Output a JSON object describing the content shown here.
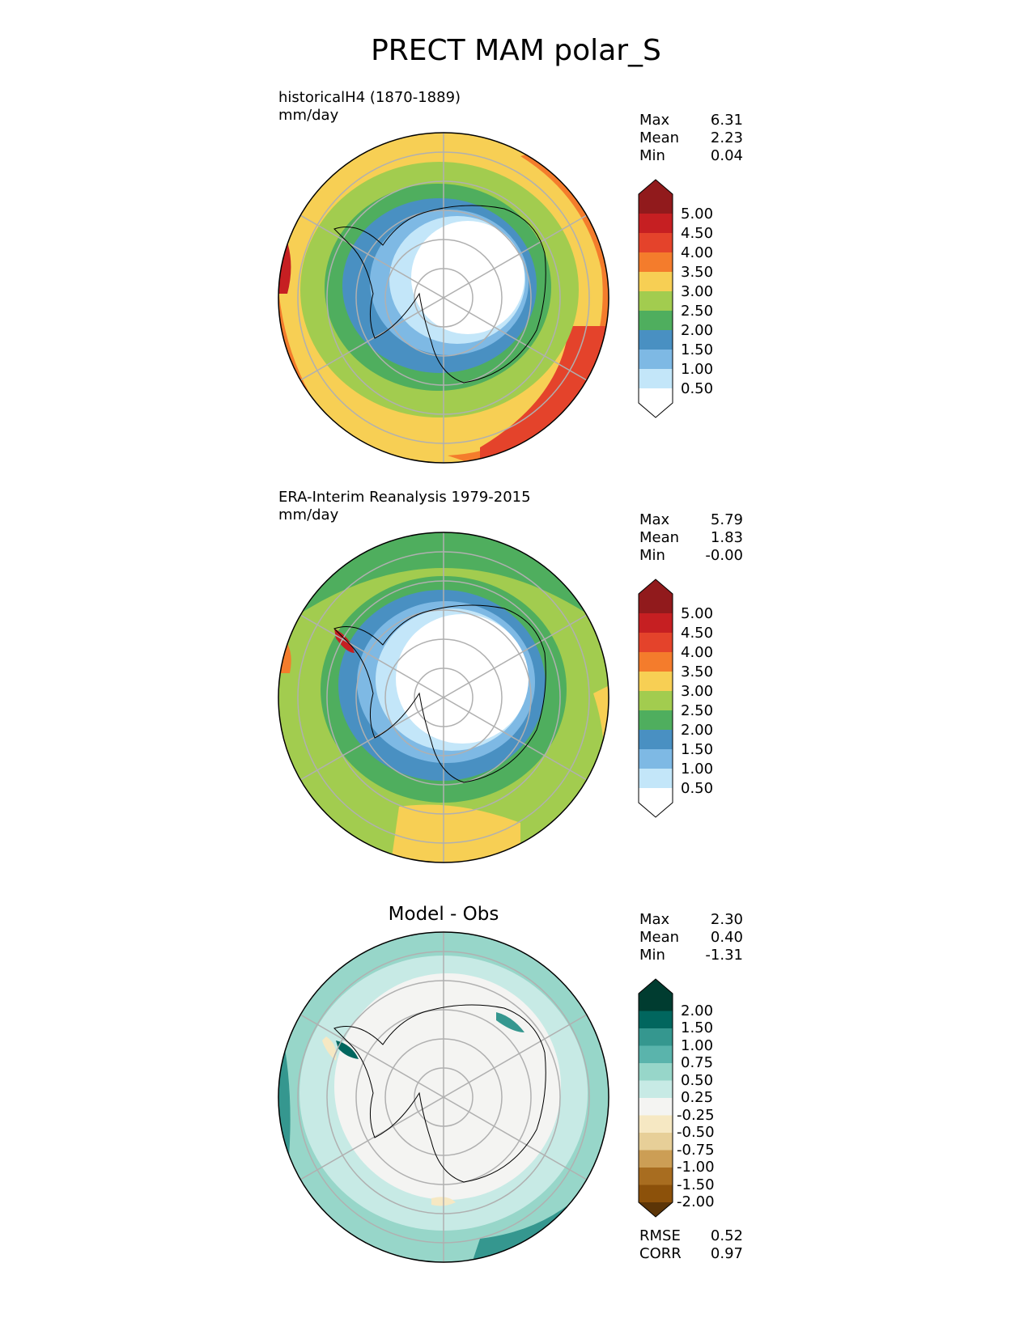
{
  "title": "PRECT MAM polar_S",
  "panels": [
    {
      "id": "test",
      "title_line1": "historicalH4 (1870-1889)",
      "title_line2": "mm/day",
      "stats": [
        {
          "label": "Max",
          "value": "6.31"
        },
        {
          "label": "Mean",
          "value": "2.23"
        },
        {
          "label": "Min",
          "value": "0.04"
        }
      ],
      "colorbar": {
        "labels": [
          "5.00",
          "4.50",
          "4.00",
          "3.50",
          "3.00",
          "2.50",
          "2.00",
          "1.50",
          "1.00",
          "0.50"
        ],
        "colors": [
          "#911a1c",
          "#c61f22",
          "#e4432b",
          "#f47c2c",
          "#f7cf54",
          "#a2cc4f",
          "#4fae5e",
          "#4990c2",
          "#7eb9e4",
          "#c3e6f9",
          "#ffffff"
        ]
      }
    },
    {
      "id": "ref",
      "title_line1": "ERA-Interim Reanalysis 1979-2015",
      "title_line2": "mm/day",
      "stats": [
        {
          "label": "Max",
          "value": "5.79"
        },
        {
          "label": "Mean",
          "value": "1.83"
        },
        {
          "label": "Min",
          "value": "-0.00"
        }
      ],
      "colorbar": {
        "labels": [
          "5.00",
          "4.50",
          "4.00",
          "3.50",
          "3.00",
          "2.50",
          "2.00",
          "1.50",
          "1.00",
          "0.50"
        ],
        "colors": [
          "#911a1c",
          "#c61f22",
          "#e4432b",
          "#f47c2c",
          "#f7cf54",
          "#a2cc4f",
          "#4fae5e",
          "#4990c2",
          "#7eb9e4",
          "#c3e6f9",
          "#ffffff"
        ]
      }
    },
    {
      "id": "diff",
      "title": "Model - Obs",
      "stats": [
        {
          "label": "Max",
          "value": "2.30"
        },
        {
          "label": "Mean",
          "value": "0.40"
        },
        {
          "label": "Min",
          "value": "-1.31"
        }
      ],
      "metrics": [
        {
          "label": "RMSE",
          "value": "0.52"
        },
        {
          "label": "CORR",
          "value": "0.97"
        }
      ],
      "colorbar": {
        "labels": [
          "2.00",
          "1.50",
          "1.00",
          "0.75",
          "0.50",
          "0.25",
          "-0.25",
          "-0.50",
          "-0.75",
          "-1.00",
          "-1.50",
          "-2.00"
        ],
        "colors": [
          "#003c30",
          "#01665e",
          "#35978f",
          "#5ab4ac",
          "#97d6c9",
          "#c7eae5",
          "#f4f4f2",
          "#f6e8c3",
          "#e7cf98",
          "#cc9e55",
          "#a86d20",
          "#8c510a",
          "#5c3507"
        ]
      }
    }
  ]
}
